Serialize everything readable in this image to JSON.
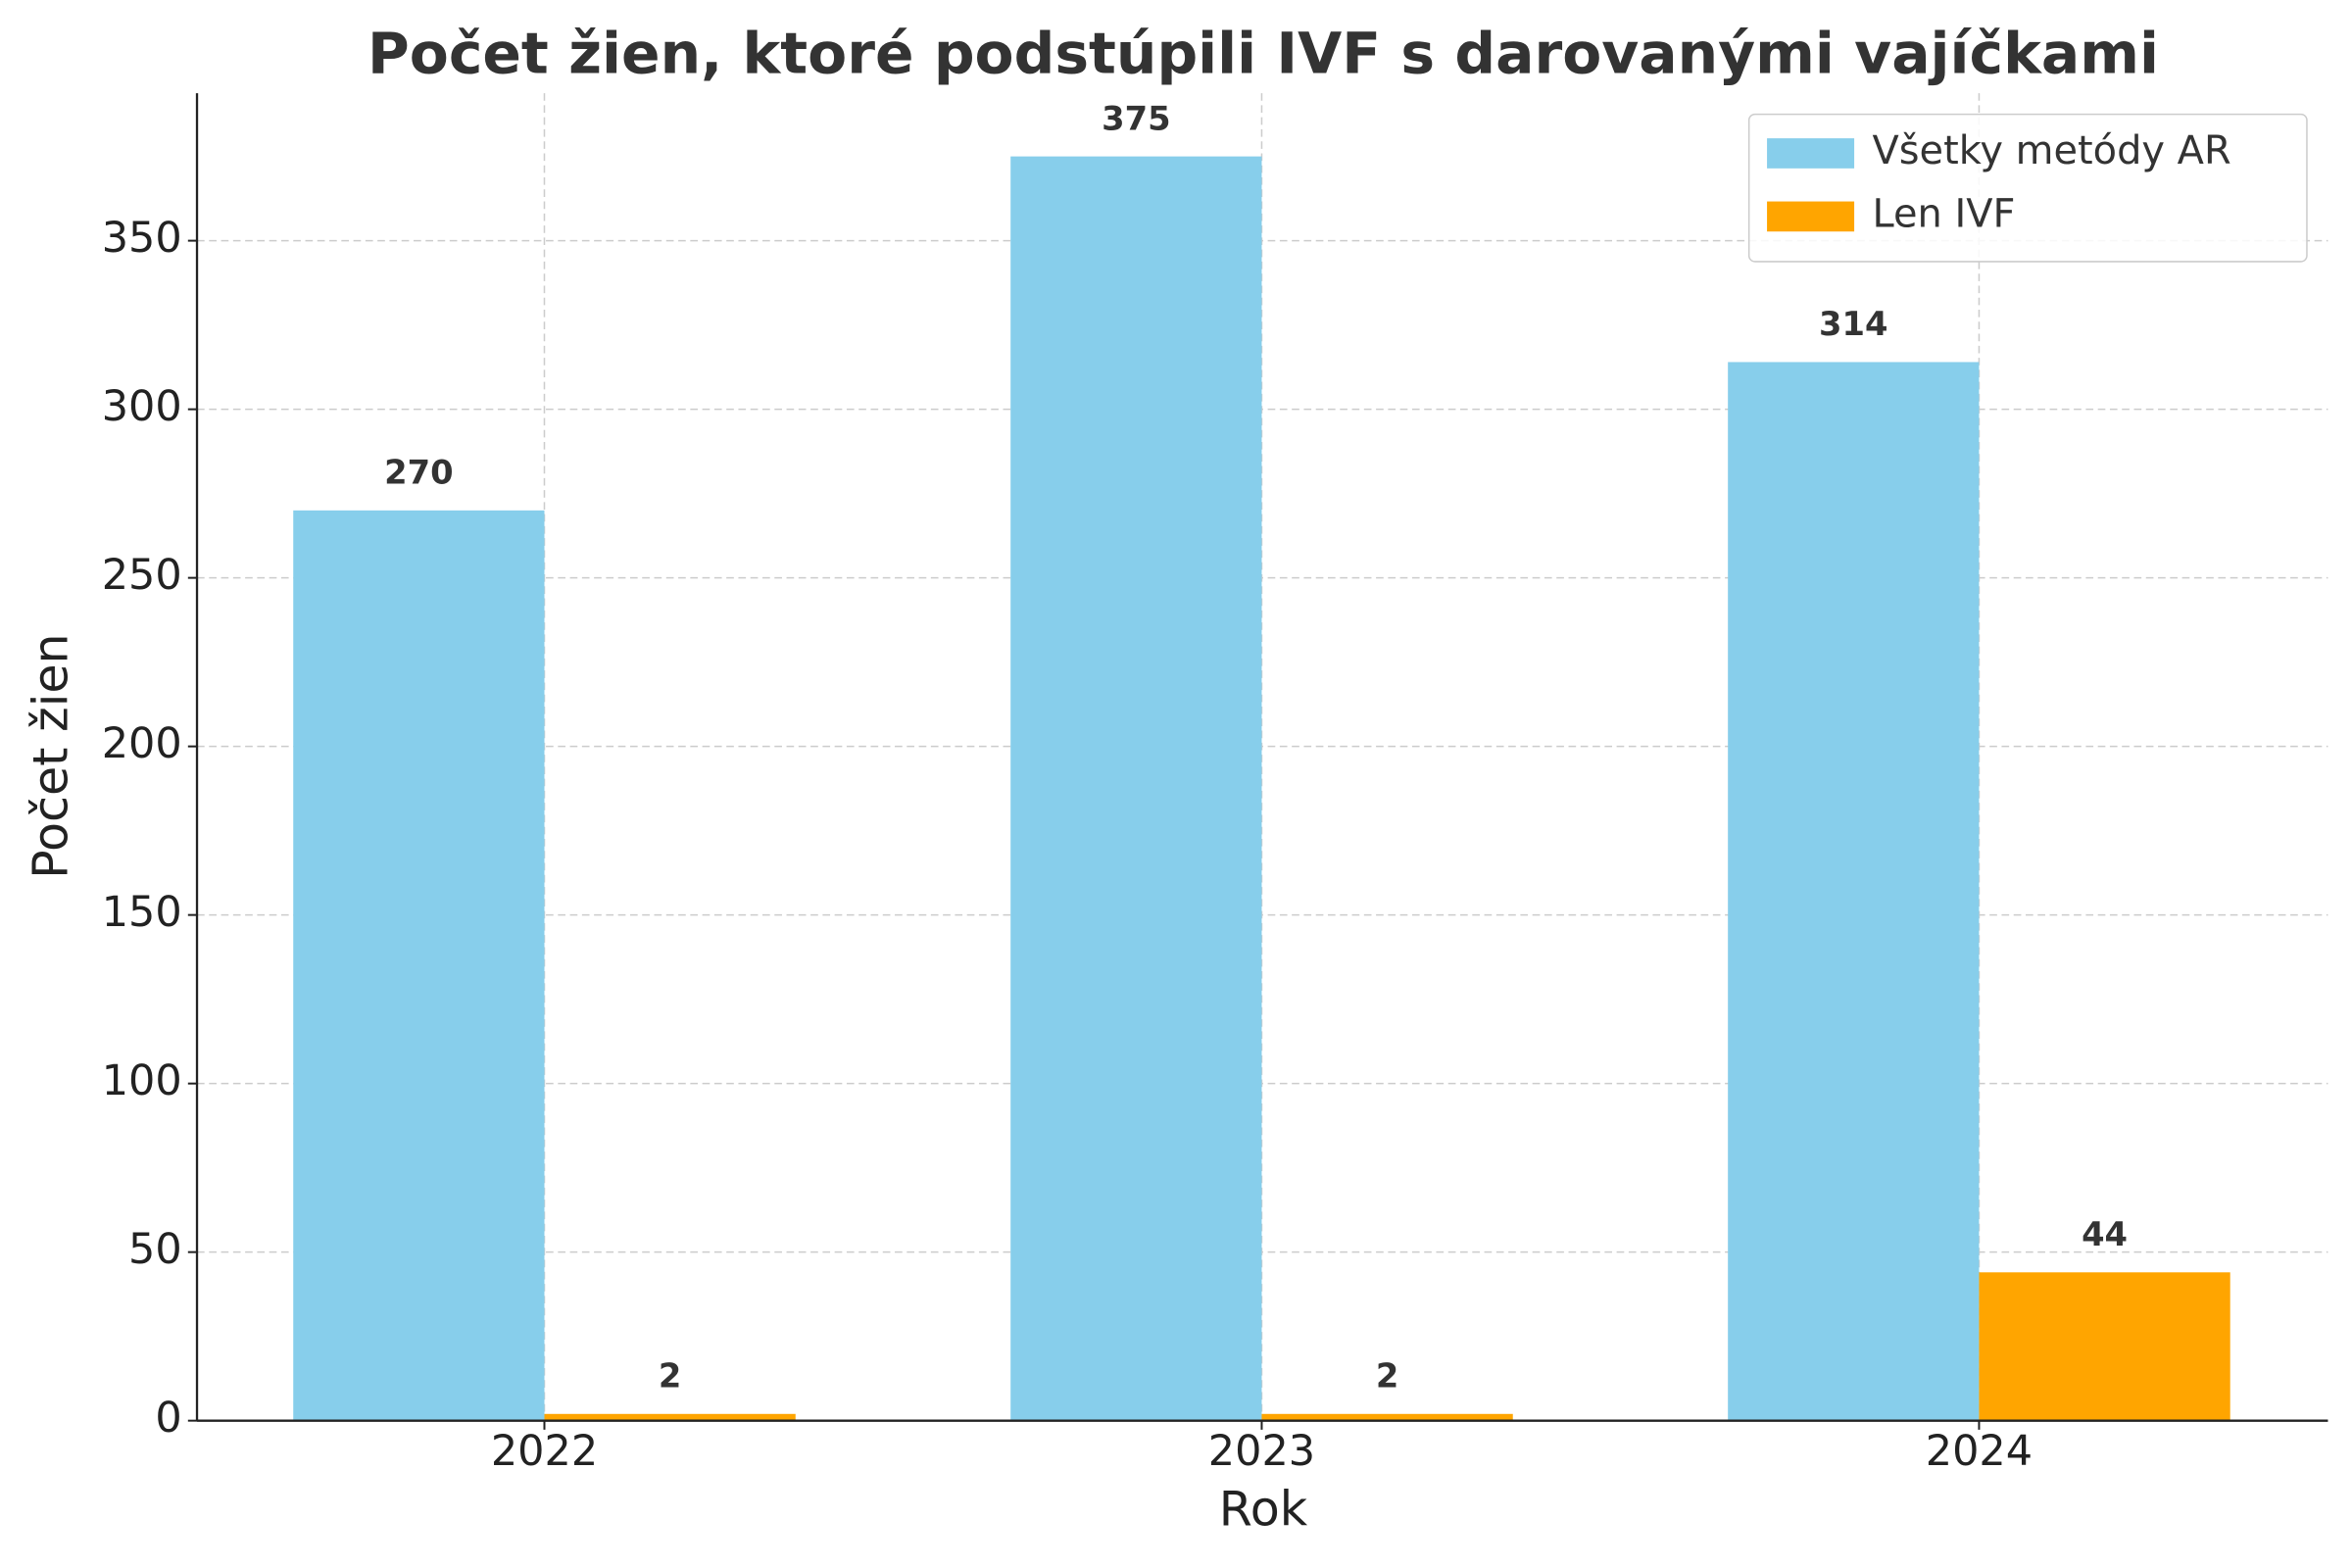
{
  "chart_data": {
    "type": "bar",
    "title": "Počet žien, ktoré podstúpili IVF s darovanými vajíčkami",
    "x_label": "Rok",
    "y_label": "Počet žien",
    "categories": [
      "2022",
      "2023",
      "2024"
    ],
    "series": [
      {
        "name": "Všetky metódy AR",
        "color": "#87ceeb",
        "values": [
          270,
          375,
          314
        ]
      },
      {
        "name": "Len IVF",
        "color": "#ffa500",
        "values": [
          2,
          2,
          44
        ]
      }
    ],
    "ylim": [
      0,
      393.75
    ],
    "yticks": [
      0,
      50,
      100,
      150,
      200,
      250,
      300,
      350
    ],
    "grid": true,
    "legend": "upper right"
  }
}
